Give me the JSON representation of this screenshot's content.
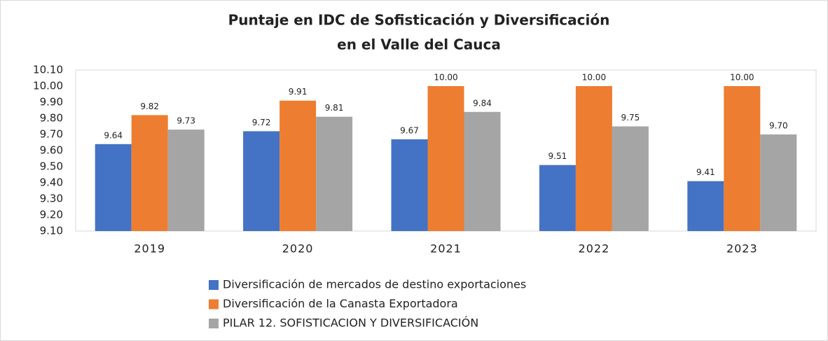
{
  "chart_data": {
    "type": "bar",
    "title": [
      "Puntaje en IDC de Sofisticación y Diversificación",
      "en el Valle del Cauca"
    ],
    "categories": [
      "2019",
      "2020",
      "2021",
      "2022",
      "2023"
    ],
    "series": [
      {
        "name": "Diversificación de mercados de destino exportaciones",
        "color": "#4472c4",
        "values": [
          9.64,
          9.72,
          9.67,
          9.51,
          9.41
        ],
        "value_labels": [
          "9.64",
          "9.72",
          "9.67",
          "9.51",
          "9.41"
        ]
      },
      {
        "name": "Diversificación de la Canasta Exportadora",
        "color": "#ed7d31",
        "values": [
          9.82,
          9.91,
          10,
          10,
          10
        ],
        "value_labels": [
          "9.82",
          "9.91",
          "10.00",
          "10.00",
          "10.00"
        ]
      },
      {
        "name": "PILAR 12. SOFISTICACION Y DIVERSIFICACIÓN",
        "color": "#a5a5a5",
        "values": [
          9.73,
          9.81,
          9.84,
          9.75,
          9.7
        ],
        "value_labels": [
          "9.73",
          "9.81",
          "9.84",
          "9.75",
          "9.70"
        ]
      }
    ],
    "ylim": [
      9.1,
      10.1
    ],
    "yticks": [
      {
        "value": 9.1,
        "label": "9.10"
      },
      {
        "value": 9.2,
        "label": "9.20"
      },
      {
        "value": 9.3,
        "label": "9.30"
      },
      {
        "value": 9.4,
        "label": "9.40"
      },
      {
        "value": 9.5,
        "label": "9.50"
      },
      {
        "value": 9.6,
        "label": "9.60"
      },
      {
        "value": 9.7,
        "label": "9.70"
      },
      {
        "value": 9.8,
        "label": "9.80"
      },
      {
        "value": 9.9,
        "label": "9.90"
      },
      {
        "value": 10,
        "label": "10.00"
      },
      {
        "value": 10.1,
        "label": "10.10"
      }
    ],
    "grid": false,
    "legend": "bottom"
  }
}
